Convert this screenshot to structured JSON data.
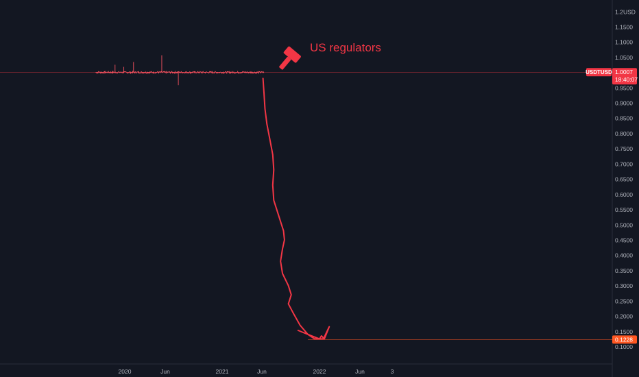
{
  "chart_data": {
    "type": "line",
    "symbol": "USDTUSD",
    "currency": "USD",
    "countdown": "18:40:07",
    "last_price": "1.0007",
    "target_price": "0.1228",
    "annotation": "US regulators",
    "annotation_icon": "gavel-icon",
    "y_ticks": [
      "1.1500",
      "1.1000",
      "1.0500",
      "0.9500",
      "0.9000",
      "0.8500",
      "0.8000",
      "0.7500",
      "0.7000",
      "0.6500",
      "0.6000",
      "0.5500",
      "0.5000",
      "0.4500",
      "0.4000",
      "0.3500",
      "0.3000",
      "0.2500",
      "0.2000",
      "0.1500",
      "0.1000"
    ],
    "y_top_label": "1.2000",
    "x_ticks": [
      "2020",
      "Jun",
      "2021",
      "Jun",
      "2022",
      "Jun",
      "3"
    ],
    "ylim": [
      0.09,
      1.215
    ],
    "price_history_level": 1.0,
    "spikes": [
      {
        "t": 2019.9,
        "v": 1.025
      },
      {
        "t": 2019.99,
        "v": 1.018
      },
      {
        "t": 2020.09,
        "v": 1.034
      },
      {
        "t": 2020.38,
        "v": 1.056
      },
      {
        "t": 2020.55,
        "v": 0.958
      }
    ],
    "drawn_path": [
      [
        2021.42,
        0.98
      ],
      [
        2021.43,
        0.93
      ],
      [
        2021.44,
        0.88
      ],
      [
        2021.46,
        0.83
      ],
      [
        2021.49,
        0.78
      ],
      [
        2021.52,
        0.73
      ],
      [
        2021.53,
        0.68
      ],
      [
        2021.52,
        0.63
      ],
      [
        2021.53,
        0.58
      ],
      [
        2021.58,
        0.53
      ],
      [
        2021.63,
        0.48
      ],
      [
        2021.64,
        0.45
      ],
      [
        2021.62,
        0.42
      ],
      [
        2021.6,
        0.38
      ],
      [
        2021.62,
        0.34
      ],
      [
        2021.68,
        0.3
      ],
      [
        2021.71,
        0.27
      ],
      [
        2021.68,
        0.24
      ],
      [
        2021.73,
        0.21
      ],
      [
        2021.8,
        0.17
      ],
      [
        2021.88,
        0.14
      ],
      [
        2021.95,
        0.125
      ],
      [
        2022.04,
        0.125
      ],
      [
        2022.1,
        0.165
      ],
      [
        2022.05,
        0.125
      ],
      [
        2022.02,
        0.135
      ],
      [
        2022.0,
        0.125
      ],
      [
        2021.88,
        0.14
      ],
      [
        2021.78,
        0.153
      ]
    ],
    "colors": {
      "background": "#131722",
      "line": "#f7525f",
      "accent": "#f23645",
      "target_tag": "#ff5722",
      "axis_text": "#b2b5be"
    }
  }
}
